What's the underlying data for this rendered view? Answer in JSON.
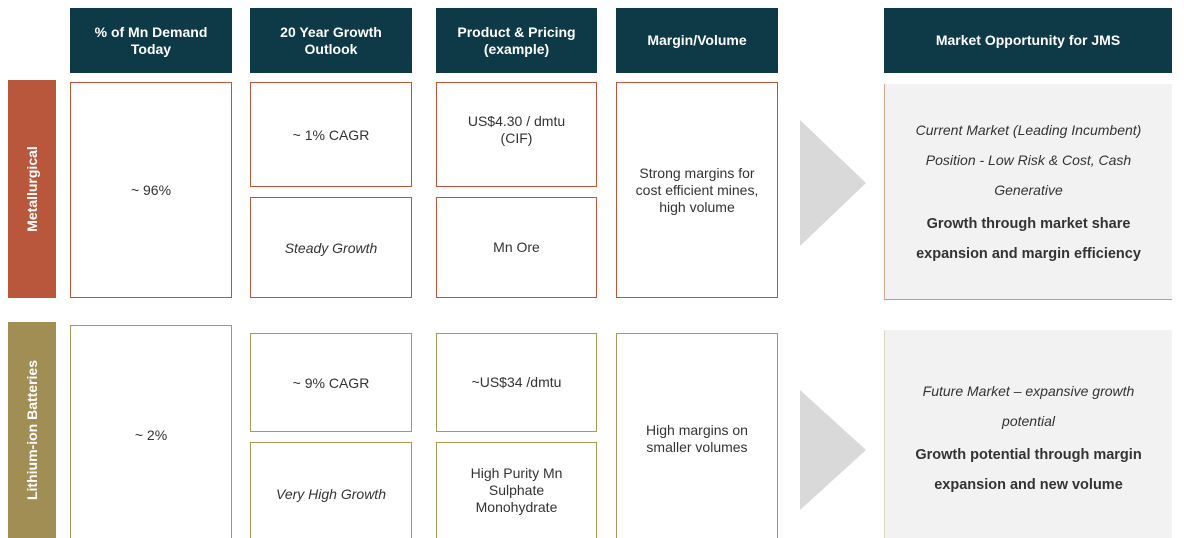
{
  "header": [
    "% of Mn Demand Today",
    "20 Year Growth Outlook",
    "Product & Pricing (example)",
    "Margin/Volume",
    "Market Opportunity for JMS"
  ],
  "rows": [
    {
      "label": "Metallurgical",
      "share": "~ 96%",
      "growth": "~ 1% CAGR",
      "growth_note": "Steady Growth",
      "price": "US$4.30 / dmtu (CIF)",
      "product": "Mn Ore",
      "margin": "Strong margins for cost efficient mines, high volume",
      "opportunity": "Current Market (Leading Incumbent) Position  - Low Risk & Cost, Cash Generative",
      "opportunity_bold": "Growth through market share expansion and margin efficiency"
    },
    {
      "label": "Lithium-ion Batteries",
      "share": "~ 2%",
      "growth": "~ 9% CAGR",
      "growth_note": "Very High Growth",
      "price": "~US$34 /dmtu",
      "product": "High Purity Mn Sulphate Monohydrate",
      "margin": "High margins on smaller volumes",
      "opportunity": "Future Market – expansive growth potential",
      "opportunity_bold": "Growth potential through margin expansion and new volume"
    }
  ]
}
